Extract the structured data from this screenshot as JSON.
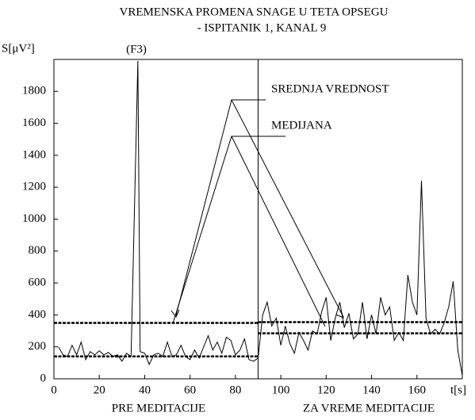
{
  "chart_data": {
    "type": "line",
    "title": "VREMENSKA PROMENA SNAGE U TETA OPSEGU",
    "subtitle": "- ISPITANIK 1, KANAL 9",
    "y_label": "S[μV²]",
    "x_label": "t[s]",
    "annotations": [
      "(F3)",
      "SREDNJA VREDNOST",
      "MEDIJANA",
      "PRE MEDITACIJE",
      "ZA VREME MEDITACIJE"
    ],
    "xlim": [
      0,
      180
    ],
    "ylim": [
      0,
      2000
    ],
    "xticks": [
      0,
      20,
      40,
      60,
      80,
      100,
      120,
      140,
      160
    ],
    "yticks": [
      0,
      200,
      400,
      600,
      800,
      1000,
      1200,
      1400,
      1600,
      1800
    ],
    "vline": 90,
    "reference_lines": [
      {
        "y": 350,
        "x": [
          0,
          90
        ]
      },
      {
        "y": 140,
        "x": [
          0,
          90
        ]
      },
      {
        "y": 355,
        "x": [
          90,
          180
        ]
      },
      {
        "y": 285,
        "x": [
          90,
          180
        ]
      }
    ],
    "series": [
      {
        "color": "#000000",
        "x": [
          2,
          4,
          6,
          8,
          10,
          12,
          14,
          16,
          18,
          20,
          22,
          24,
          26,
          28,
          30,
          32,
          34,
          37,
          38,
          40,
          42,
          44,
          46,
          48,
          50,
          52,
          54,
          56,
          58,
          60,
          62,
          64,
          66,
          68,
          70,
          72,
          74,
          76,
          78,
          80,
          82,
          84,
          86,
          88,
          90,
          92,
          94,
          96,
          98,
          100,
          102,
          104,
          106,
          108,
          110,
          112,
          114,
          116,
          118,
          120,
          122,
          124,
          126,
          128,
          130,
          132,
          134,
          136,
          138,
          140,
          142,
          144,
          146,
          148,
          150,
          152,
          154,
          156,
          158,
          160,
          162,
          164,
          166,
          168,
          170,
          172,
          174,
          176,
          178,
          180
        ],
        "values": [
          200,
          150,
          140,
          210,
          150,
          230,
          120,
          170,
          150,
          175,
          150,
          165,
          140,
          150,
          110,
          160,
          140,
          1990,
          170,
          160,
          90,
          150,
          160,
          140,
          230,
          140,
          150,
          210,
          140,
          120,
          180,
          130,
          200,
          270,
          180,
          230,
          160,
          260,
          240,
          150,
          180,
          250,
          120,
          110,
          130,
          400,
          480,
          330,
          380,
          210,
          330,
          220,
          160,
          290,
          240,
          180,
          300,
          280,
          420,
          510,
          240,
          380,
          480,
          320,
          410,
          250,
          280,
          480,
          250,
          400,
          280,
          510,
          400,
          450,
          240,
          290,
          240,
          650,
          480,
          400,
          1240,
          380,
          280,
          310,
          280,
          350,
          450,
          610,
          180,
          20
        ]
      }
    ]
  }
}
